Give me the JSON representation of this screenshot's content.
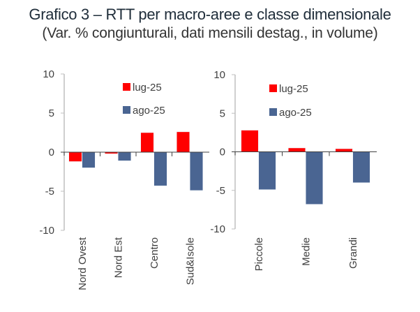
{
  "title": "Grafico 3 – RTT per macro-aree e classe dimensionale",
  "subtitle": "(Var. % congiunturali, dati mensili destag., in volume)",
  "colors": {
    "lug-25": "#FF0000",
    "ago-25": "#4A6592"
  },
  "chart_data": [
    {
      "type": "bar",
      "title": "",
      "xlabel": "",
      "ylabel": "",
      "ylim": [
        -10,
        10
      ],
      "yticks": [
        10,
        5,
        0,
        -5,
        -10
      ],
      "grid": false,
      "legend": "top-center",
      "categories": [
        "Nord Ovest",
        "Nord Est",
        "Centro",
        "Sud&Isole"
      ],
      "series": [
        {
          "name": "lug-25",
          "values": [
            -1.2,
            -0.2,
            2.5,
            2.6
          ]
        },
        {
          "name": "ago-25",
          "values": [
            -2.0,
            -1.1,
            -4.3,
            -4.9
          ]
        }
      ]
    },
    {
      "type": "bar",
      "title": "",
      "xlabel": "",
      "ylabel": "",
      "ylim": [
        -10,
        10
      ],
      "yticks": [
        10,
        5,
        0,
        -5,
        -10
      ],
      "grid": false,
      "legend": "top-center",
      "categories": [
        "Piccole",
        "Medie",
        "Grandi"
      ],
      "series": [
        {
          "name": "lug-25",
          "values": [
            2.8,
            0.5,
            0.4
          ]
        },
        {
          "name": "ago-25",
          "values": [
            -4.9,
            -6.8,
            -4.0
          ]
        }
      ]
    }
  ]
}
